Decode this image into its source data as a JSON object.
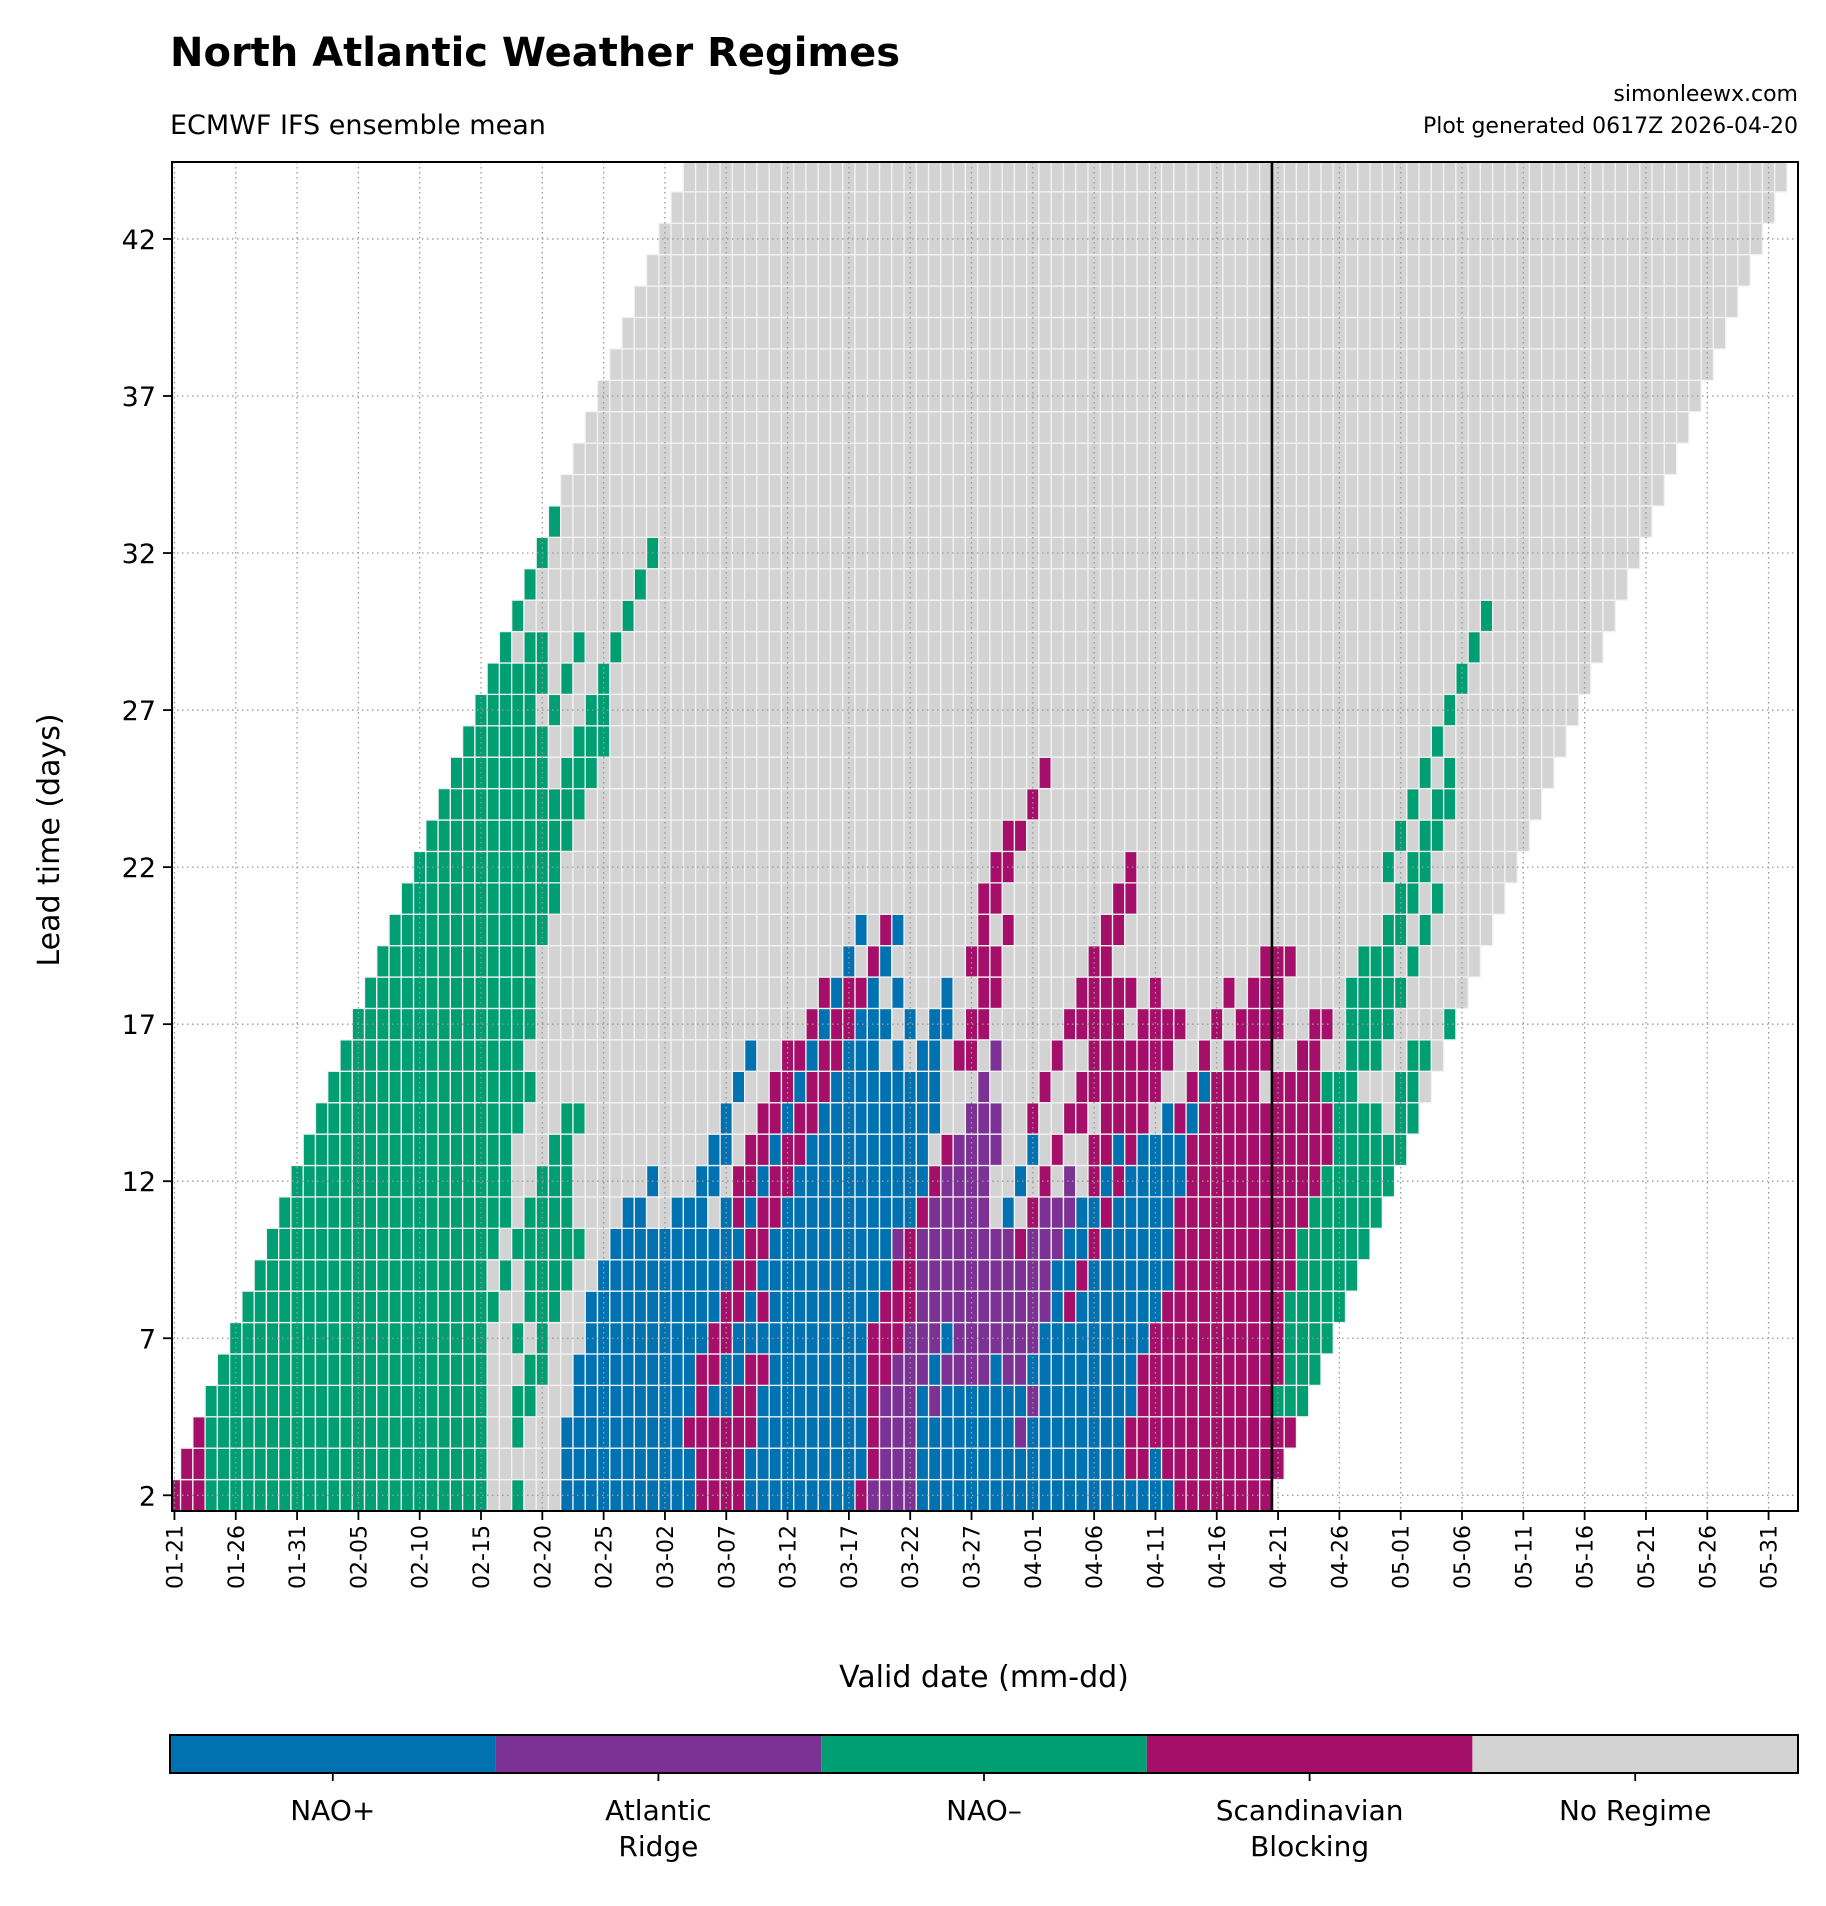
{
  "header": {
    "title": "North Atlantic Weather Regimes",
    "subtitle": "ECMWF IFS ensemble mean",
    "credit_site": "simonleewx.com",
    "credit_generated": "Plot generated 0617Z 2026-04-20"
  },
  "chart_data": {
    "type": "heatmap",
    "title": "North Atlantic Weather Regimes",
    "xlabel": "Valid date (mm-dd)",
    "ylabel": "Lead time (days)",
    "x_origin_date": "01-21",
    "xlim_days": [
      -0.2,
      132.4
    ],
    "ylim": [
      1.5,
      44.45
    ],
    "grid": true,
    "x_ticks_days": [
      0,
      5,
      10,
      15,
      20,
      25,
      30,
      35,
      40,
      45,
      50,
      55,
      60,
      65,
      70,
      75,
      80,
      85,
      90,
      95,
      100,
      105,
      110,
      115,
      120,
      125,
      130
    ],
    "x_tick_labels": [
      "01-21",
      "01-26",
      "01-31",
      "02-05",
      "02-10",
      "02-15",
      "02-20",
      "02-25",
      "03-02",
      "03-07",
      "03-12",
      "03-17",
      "03-22",
      "03-27",
      "04-01",
      "04-06",
      "04-11",
      "04-16",
      "04-21",
      "04-26",
      "05-01",
      "05-06",
      "05-11",
      "05-16",
      "05-21",
      "05-26",
      "05-31"
    ],
    "y_ticks": [
      2,
      7,
      12,
      17,
      22,
      27,
      32,
      37,
      42
    ],
    "y_tick_labels": [
      "2",
      "7",
      "12",
      "17",
      "22",
      "27",
      "32",
      "37",
      "42"
    ],
    "today_line_day": 90,
    "legend_placement": "bottom",
    "regimes": [
      {
        "code": "P",
        "lines": [
          "NAO+"
        ],
        "color": "#0072B2"
      },
      {
        "code": "A",
        "lines": [
          "Atlantic",
          "Ridge"
        ],
        "color": "#7B3294"
      },
      {
        "code": "N",
        "lines": [
          "NAO–"
        ],
        "color": "#009E73"
      },
      {
        "code": "S",
        "lines": [
          "Scandinavian",
          "Blocking"
        ],
        "color": "#A50F69"
      },
      {
        "code": "G",
        "lines": [
          "No Regime"
        ],
        "color": "#D3D3D3"
      }
    ],
    "row_note": "each row = one lead time (days); cells run over valid-date day index starting at lead-2; runs = regime code + count",
    "rows": [
      {
        "lead": 2,
        "runs": "S3 N23 G2 N1 G3 P11 S4 P9 S1 A4 P21 S8"
      },
      {
        "lead": 3,
        "runs": "S2 N23 G6 P11 S4 P10 S1 A3 P17 S2 P1 S10"
      },
      {
        "lead": 4,
        "runs": "S1 N23 G2 N1 G3 P10 S6 P9 S1 A3 P8 A1 P8 S14"
      },
      {
        "lead": 5,
        "runs": "N23 G2 N2 G3 P10 S1 P2 S2 P9 S1 A3 P1 A1 P7 A1 P8 S11 N3"
      },
      {
        "lead": 6,
        "runs": "N22 G3 N2 G2 P10 S2 P2 S2 P8 S2 A3 P1 A4 P1 A2 P9 S12 N3"
      },
      {
        "lead": 7,
        "runs": "N21 G2 N1 G1 N1 G3 P10 S2 P11 S3 A3 P1 A7 P9 S11 N4"
      },
      {
        "lead": 8,
        "runs": "N21 G2 N3 G2 P11 S2 P1 S1 P9 S3 A11 P1 S1 P7 S10 N5"
      },
      {
        "lead": 9,
        "runs": "N19 G1 N1 G1 N4 G2 P11 S2 P11 S2 A11 P2 S1 P7 S10 N5"
      },
      {
        "lead": 10,
        "runs": "N19 G1 N6 G2 P11 S2 P10 A1 S1 A8 S1 A3 P2 S1 P6 S10 N6"
      },
      {
        "lead": 11,
        "runs": "N19 G1 N4 G4 P2 G2 P3 G1 P1 S1 P1 S2 P11 S1 A5 G1 P1 G1 S1 A3 P2 S1 P5 S11 N6"
      },
      {
        "lead": 12,
        "runs": "N18 G2 N3 G6 P1 G3 P2 G1 S2 P1 S2 P11 S1 A4 G2 P1 G1 S1 G1 A1 G1 S1 P1 S1 P5 S11 N6"
      },
      {
        "lead": 13,
        "runs": "N17 G3 N2 G11 P2 G1 S2 P1 S2 P10 G1 S1 A4 G2 P1 G1 S1 G2 S2 P1 S1 P4 S12 N6"
      },
      {
        "lead": 14,
        "runs": "N17 G3 N2 G11 P1 G2 S2 P1 S2 P10 G2 A3 G2 S1 G2 S2 G1 S4 G1 P1 S1 P1 S11 N4 G1 N2"
      },
      {
        "lead": 15,
        "runs": "N17 G16 P1 G2 S2 P1 S2 P9 G3 A1 G4 S1 G2 S7 G2 S1 P1 S4 G1 S4 N3 G3 N2 G1"
      },
      {
        "lead": 16,
        "runs": "N15 G18 P1 G2 S2 P1 S2 P3 G1 P1 G1 P2 G1 S2 G1 A1 G4 S1 G2 S7 G2 S1 G1 S4 G2 S2 G2 N3 G2 N2 G1"
      },
      {
        "lead": 17,
        "runs": "N15 G22 S1 P1 S2 P3 G1 P1 G1 P2 G1 S2 G6 S5 G1 S4 G2 S1 G1 S4 G2 S2 G1 N4 G4 N1"
      },
      {
        "lead": 18,
        "runs": "N14 G23 S1 P1 S2 P1 G1 P1 G3 P1 G2 S2 G6 S5 G1 S1 G5 S1 G1 S3 G5 N5 G5"
      },
      {
        "lead": 19,
        "runs": "N13 G25 P1 G1 S1 P1 G6 S3 G7 S2 G12 S3 G5 N3 G1 N1 G5"
      },
      {
        "lead": 20,
        "runs": "N13 G25 P1 G1 S1 P1 G6 S1 G1 S1 G7 S2 G21 N2 G1 N1 G5"
      },
      {
        "lead": 21,
        "runs": "N13 G34 S2 G9 S2 G21 N2 G1 N1 G5"
      },
      {
        "lead": 22,
        "runs": "N12 G35 S2 G9 S1 G20 N1 G1 N2 G7"
      },
      {
        "lead": 23,
        "runs": "N12 G35 S2 G30 N1 G1 N2 G7"
      },
      {
        "lead": 24,
        "runs": "N12 G36 S1 G30 N1 G1 N2 G7"
      },
      {
        "lead": 25,
        "runs": "N8 G1 N3 G36 S1 G30 N1 G1 N1 G8"
      },
      {
        "lead": 26,
        "runs": "N7 G2 N3 G67 N1 G10"
      },
      {
        "lead": 27,
        "runs": "N5 G1 N1 G2 N2 G68 N1 G10"
      },
      {
        "lead": 28,
        "runs": "N5 G1 N1 G2 N1 G69 N1 G10"
      },
      {
        "lead": 29,
        "runs": "N1 G1 N2 G2 N1 G2 N1 G69 N1 G10"
      },
      {
        "lead": 30,
        "runs": "N1 G8 N1 G69 N1 G10"
      },
      {
        "lead": 31,
        "runs": "N1 G8 N1 G80"
      },
      {
        "lead": 32,
        "runs": "N1 G8 N1 G80"
      },
      {
        "lead": 33,
        "runs": "N1 G89"
      },
      {
        "lead": 34,
        "runs": "G90"
      },
      {
        "lead": 35,
        "runs": "G90"
      },
      {
        "lead": 36,
        "runs": "G90"
      },
      {
        "lead": 37,
        "runs": "G90"
      },
      {
        "lead": 38,
        "runs": "G90"
      },
      {
        "lead": 39,
        "runs": "G90"
      },
      {
        "lead": 40,
        "runs": "G90"
      },
      {
        "lead": 41,
        "runs": "G90"
      },
      {
        "lead": 42,
        "runs": "G90"
      },
      {
        "lead": 43,
        "runs": "G90"
      },
      {
        "lead": 44,
        "runs": "G90"
      }
    ]
  }
}
